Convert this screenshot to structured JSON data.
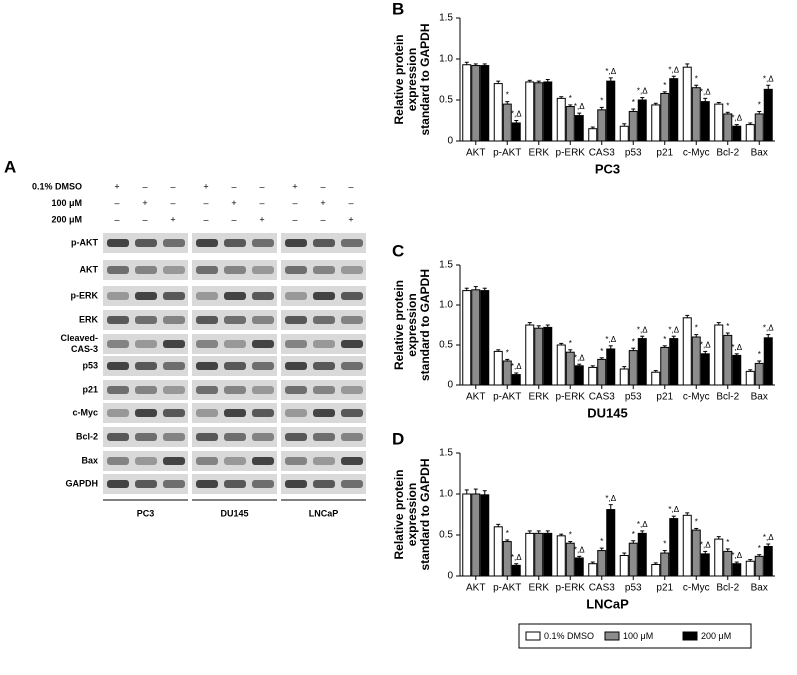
{
  "blot": {
    "panel": "A",
    "treatments": [
      {
        "name": "0.1% DMSO",
        "marks": [
          "+",
          "–",
          "–",
          "+",
          "–",
          "–",
          "+",
          "–",
          "–"
        ]
      },
      {
        "name": "100 μM",
        "marks": [
          "–",
          "+",
          "–",
          "–",
          "+",
          "–",
          "–",
          "+",
          "–"
        ]
      },
      {
        "name": "200 μM",
        "marks": [
          "–",
          "–",
          "+",
          "–",
          "–",
          "+",
          "–",
          "–",
          "+"
        ]
      }
    ],
    "proteins": [
      [
        "p-AKT"
      ],
      [
        "AKT"
      ],
      [
        "p-ERK"
      ],
      [
        "ERK"
      ],
      [
        "Cleaved-",
        "CAS-3"
      ],
      [
        "p53"
      ],
      [
        "p21"
      ],
      [
        "c-Myc"
      ],
      [
        "Bcl-2"
      ],
      [
        "Bax"
      ],
      [
        "GAPDH"
      ]
    ],
    "cell_lines": [
      "PC3",
      "DU145",
      "LNCaP"
    ]
  },
  "chart_data": [
    {
      "type": "bar",
      "panel": "B",
      "ylabel": [
        "Relative protein",
        "expression",
        "standard to GAPDH"
      ],
      "xlabel": "PC3",
      "categories": [
        "AKT",
        "p-AKT",
        "ERK",
        "p-ERK",
        "CAS3",
        "p53",
        "p21",
        "c-Myc",
        "Bcl-2",
        "Bax"
      ],
      "ylim": [
        0,
        1.5
      ],
      "yticks": [
        0,
        0.5,
        {
          "value": 1,
          "label": "1.0"
        },
        1.5
      ],
      "series": [
        {
          "name": "0.1% DMSO",
          "color": "#ffffff",
          "values": [
            0.93,
            0.7,
            0.72,
            0.52,
            0.15,
            0.18,
            0.44,
            0.9,
            0.45,
            0.2
          ],
          "errors": [
            0.03,
            0.03,
            0.02,
            0.02,
            0.02,
            0.03,
            0.02,
            0.04,
            0.02,
            0.02
          ],
          "annotations": [
            null,
            null,
            null,
            null,
            null,
            null,
            null,
            null,
            null,
            null
          ]
        },
        {
          "name": "100 μM",
          "color": "#8c8c8c",
          "values": [
            0.92,
            0.45,
            0.71,
            0.42,
            0.38,
            0.36,
            0.58,
            0.65,
            0.33,
            0.33
          ],
          "errors": [
            0.02,
            0.03,
            0.02,
            0.02,
            0.03,
            0.03,
            0.02,
            0.03,
            0.02,
            0.03
          ],
          "annotations": [
            null,
            "*",
            null,
            "*",
            "*",
            "*",
            "*",
            "*",
            "*",
            "*"
          ]
        },
        {
          "name": "200 μM",
          "color": "#000000",
          "values": [
            0.92,
            0.22,
            0.72,
            0.31,
            0.73,
            0.5,
            0.76,
            0.48,
            0.18,
            0.63
          ],
          "errors": [
            0.02,
            0.03,
            0.03,
            0.03,
            0.04,
            0.03,
            0.03,
            0.04,
            0.02,
            0.05
          ],
          "annotations": [
            null,
            "*,Δ",
            null,
            "*,Δ",
            "*,Δ",
            "*,Δ",
            "*,Δ",
            "*,Δ",
            "*,Δ",
            "*,Δ"
          ]
        }
      ]
    },
    {
      "type": "bar",
      "panel": "C",
      "ylabel": [
        "Relative protein",
        "expression",
        "standard to GAPDH"
      ],
      "xlabel": "DU145",
      "categories": [
        "AKT",
        "p-AKT",
        "ERK",
        "p-ERK",
        "CAS3",
        "p53",
        "p21",
        "c-Myc",
        "Bcl-2",
        "Bax"
      ],
      "ylim": [
        0,
        1.5
      ],
      "yticks": [
        0,
        0.5,
        {
          "value": 1,
          "label": "1.0"
        },
        1.5
      ],
      "series": [
        {
          "color": "#ffffff",
          "values": [
            1.18,
            0.42,
            0.75,
            0.5,
            0.22,
            0.2,
            0.16,
            0.84,
            0.75,
            0.17
          ],
          "errors": [
            0.03,
            0.02,
            0.03,
            0.02,
            0.02,
            0.03,
            0.02,
            0.03,
            0.03,
            0.02
          ],
          "annotations": [
            null,
            null,
            null,
            null,
            null,
            null,
            null,
            null,
            null,
            null
          ]
        },
        {
          "color": "#8c8c8c",
          "values": [
            1.19,
            0.3,
            0.71,
            0.41,
            0.32,
            0.43,
            0.47,
            0.6,
            0.62,
            0.27
          ],
          "errors": [
            0.04,
            0.02,
            0.03,
            0.03,
            0.02,
            0.03,
            0.02,
            0.03,
            0.03,
            0.03
          ],
          "annotations": [
            null,
            "*",
            null,
            "*",
            "*",
            "*",
            "*",
            "*",
            "*",
            "*"
          ]
        },
        {
          "color": "#000000",
          "values": [
            1.18,
            0.13,
            0.72,
            0.24,
            0.45,
            0.58,
            0.58,
            0.39,
            0.37,
            0.59
          ],
          "errors": [
            0.03,
            0.02,
            0.03,
            0.02,
            0.04,
            0.03,
            0.03,
            0.03,
            0.02,
            0.04
          ],
          "annotations": [
            null,
            "*,Δ",
            null,
            "*,Δ",
            "*,Δ",
            "*,Δ",
            "*,Δ",
            "*,Δ",
            "*,Δ",
            "*,Δ"
          ]
        }
      ]
    },
    {
      "type": "bar",
      "panel": "D",
      "ylabel": [
        "Relative protein",
        "expression",
        "standard to GAPDH"
      ],
      "xlabel": "LNCaP",
      "categories": [
        "AKT",
        "p-AKT",
        "ERK",
        "p-ERK",
        "CAS3",
        "p53",
        "p21",
        "c-Myc",
        "Bcl-2",
        "Bax"
      ],
      "ylim": [
        0,
        1.5
      ],
      "yticks": [
        0,
        0.5,
        {
          "value": 1,
          "label": "1.0"
        },
        1.5
      ],
      "series": [
        {
          "color": "#ffffff",
          "values": [
            1.0,
            0.6,
            0.52,
            0.49,
            0.15,
            0.25,
            0.14,
            0.74,
            0.45,
            0.18
          ],
          "errors": [
            0.05,
            0.03,
            0.03,
            0.02,
            0.02,
            0.03,
            0.02,
            0.03,
            0.03,
            0.02
          ],
          "annotations": [
            null,
            null,
            null,
            null,
            null,
            null,
            null,
            null,
            null,
            null
          ]
        },
        {
          "color": "#8c8c8c",
          "values": [
            1.0,
            0.42,
            0.52,
            0.4,
            0.31,
            0.4,
            0.28,
            0.56,
            0.3,
            0.24
          ],
          "errors": [
            0.06,
            0.02,
            0.03,
            0.02,
            0.03,
            0.03,
            0.03,
            0.02,
            0.03,
            0.02
          ],
          "annotations": [
            null,
            "*",
            null,
            "*",
            "*",
            "*",
            "*",
            "*",
            "*",
            "*"
          ]
        },
        {
          "color": "#000000",
          "values": [
            0.99,
            0.13,
            0.52,
            0.22,
            0.81,
            0.52,
            0.7,
            0.27,
            0.15,
            0.36
          ],
          "errors": [
            0.05,
            0.02,
            0.03,
            0.02,
            0.06,
            0.03,
            0.03,
            0.03,
            0.02,
            0.03
          ],
          "annotations": [
            null,
            "*,Δ",
            null,
            "*,Δ",
            "*,Δ",
            "*,Δ",
            "*,Δ",
            "*,Δ",
            "*,Δ",
            "*,Δ"
          ]
        }
      ]
    }
  ]
}
